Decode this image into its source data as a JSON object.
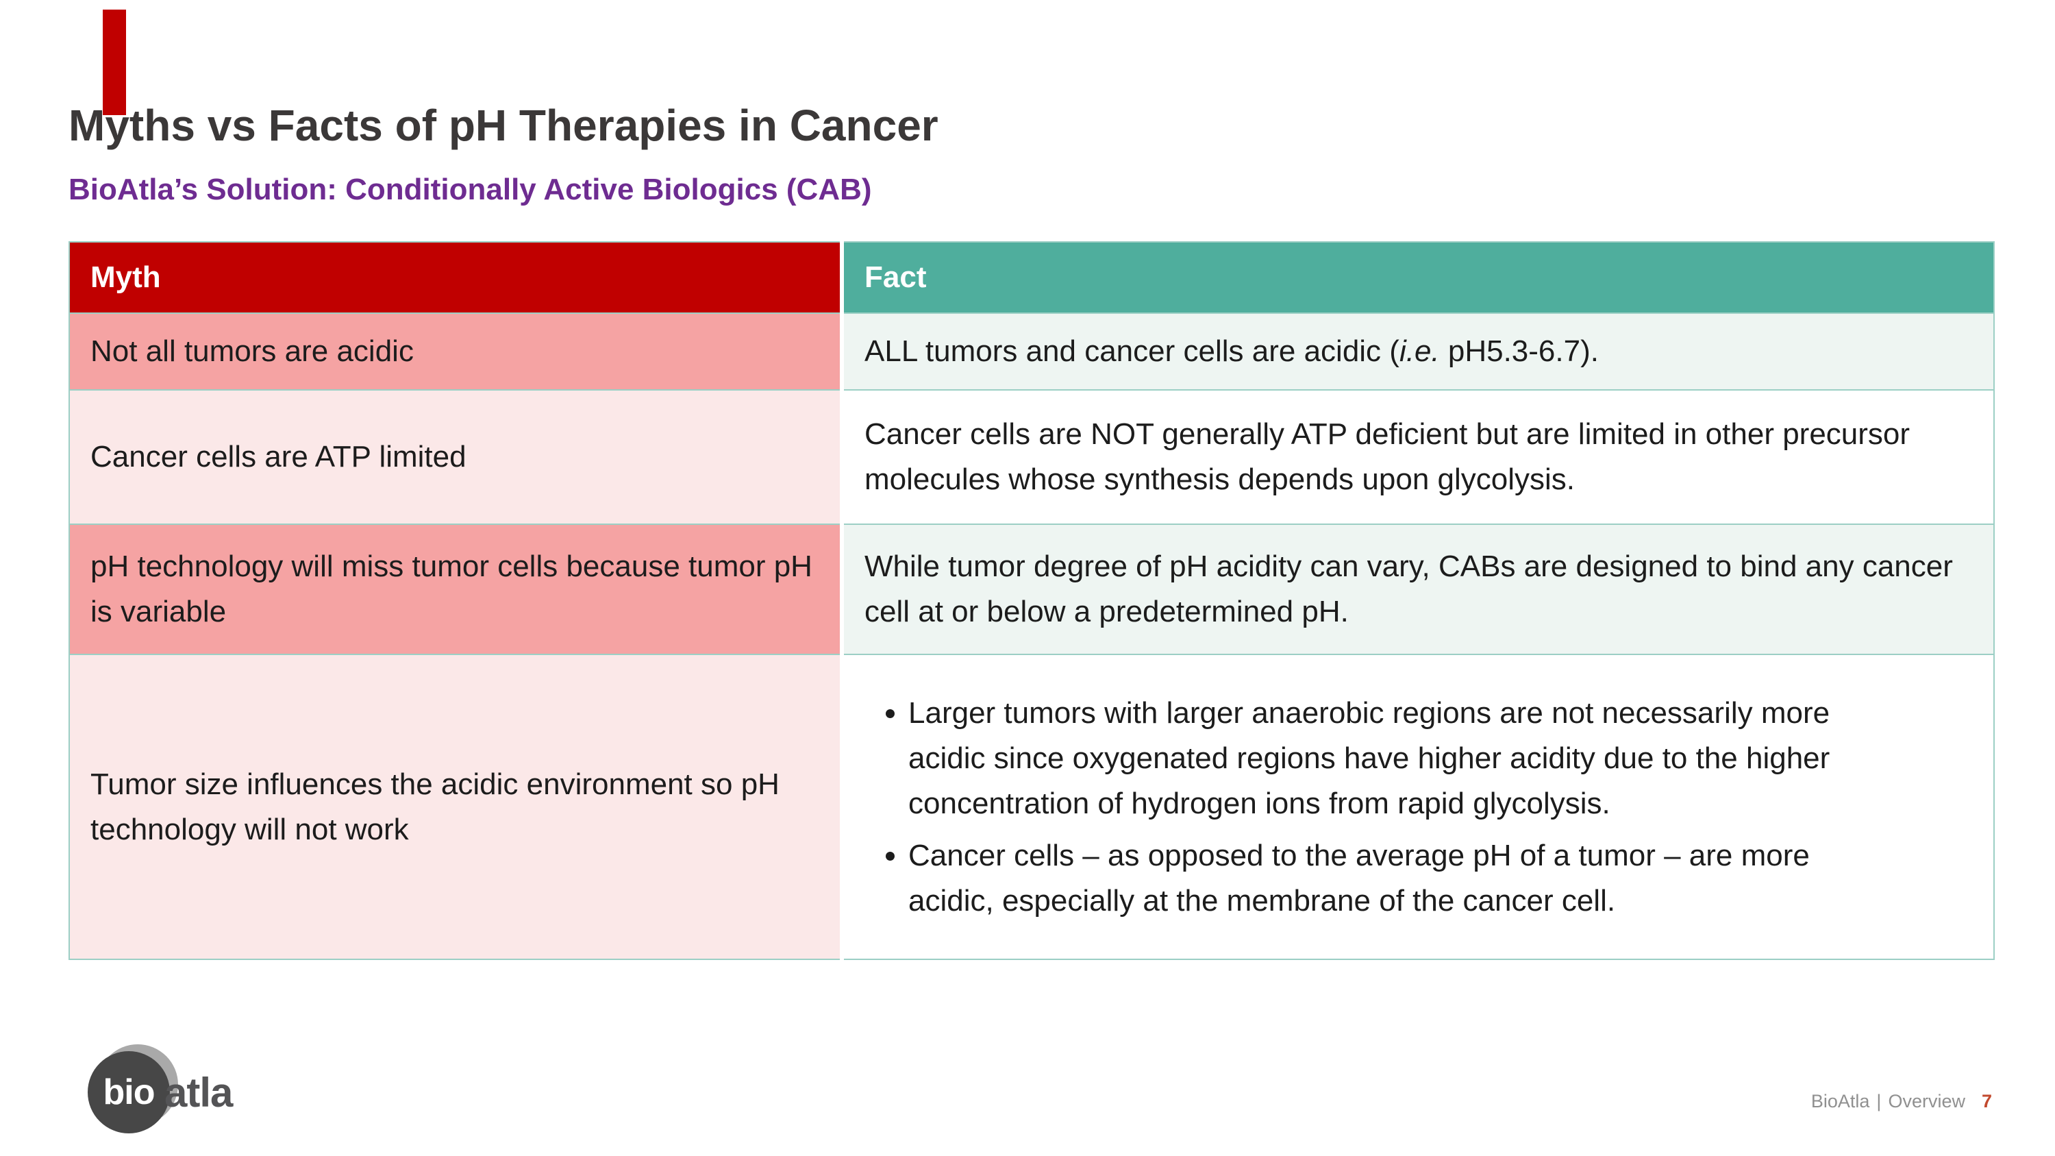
{
  "slide": {
    "title": "Myths vs Facts of pH Therapies in Cancer",
    "subtitle": "BioAtla’s Solution: Conditionally Active Biologics (CAB)"
  },
  "table": {
    "headers": [
      "Myth",
      "Fact"
    ],
    "rows": [
      {
        "myth": "Not all tumors are acidic",
        "fact_parts": [
          "ALL tumors and cancer cells are acidic (",
          "i.e.",
          " pH5.3-6.7)."
        ]
      },
      {
        "myth": "Cancer cells are ATP limited",
        "fact": "Cancer cells are NOT generally ATP deficient but are limited in other precursor molecules whose synthesis depends upon glycolysis."
      },
      {
        "myth": "pH technology will miss tumor cells because tumor pH is variable",
        "fact": "While tumor degree of pH acidity can vary, CABs are designed to bind any cancer cell at or below a predetermined pH."
      },
      {
        "myth": "Tumor size influences the acidic environment so pH technology will not work",
        "fact_bullets": [
          "Larger tumors with larger anaerobic regions are not necessarily more acidic since oxygenated regions have higher acidity due to the higher concentration of hydrogen ions from rapid glycolysis.",
          "Cancer cells – as opposed to the average pH of a tumor – are more acidic, especially at the membrane of the cancer cell."
        ]
      }
    ]
  },
  "logo": {
    "bio": "bio",
    "atla": "atla"
  },
  "footer": {
    "brand": "BioAtla",
    "separator": "|",
    "section": "Overview",
    "page": "7"
  },
  "colors": {
    "accent_red": "#C00000",
    "header_teal": "#4FAE9D",
    "myth_strong_pink": "#F5A3A3",
    "myth_light_pink": "#FBE8E8",
    "fact_tint": "#EEF5F2",
    "subtitle_purple": "#6E2C91",
    "page_number_red": "#c24a2f"
  }
}
